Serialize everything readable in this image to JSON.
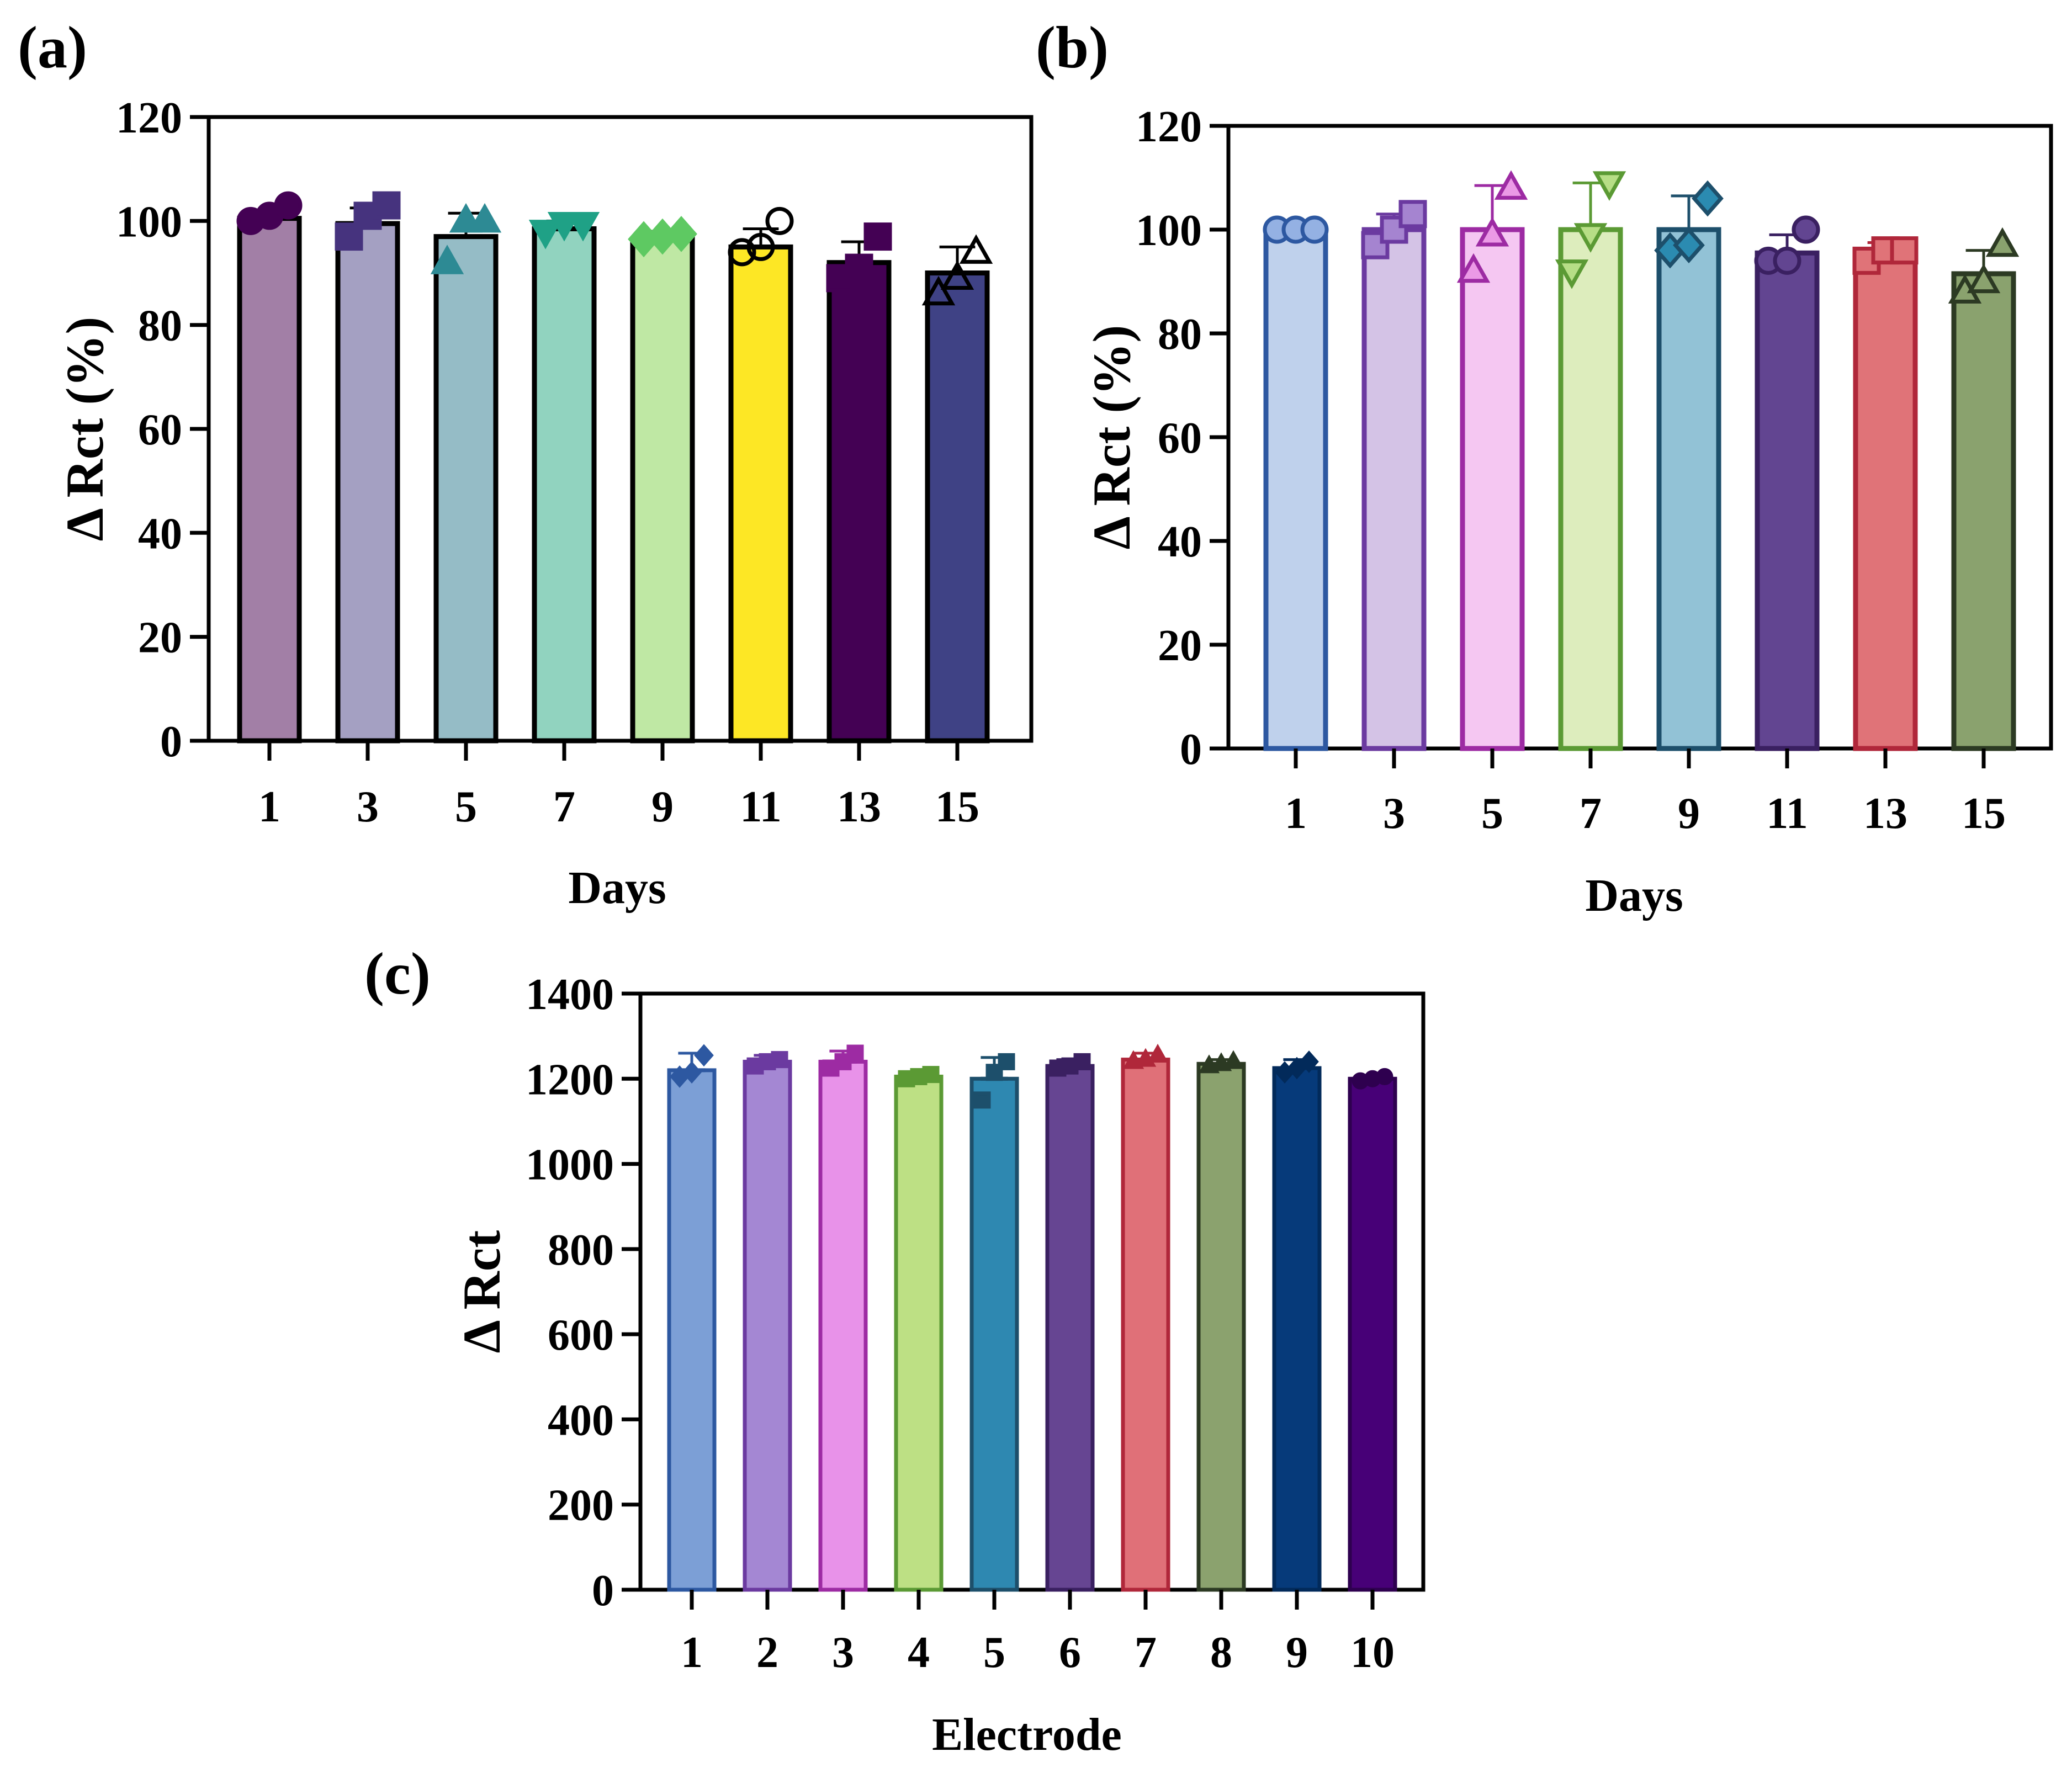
{
  "chart_data": [
    {
      "panel_label": "(a)",
      "type": "bar",
      "categories": [
        "1",
        "3",
        "5",
        "7",
        "9",
        "11",
        "13",
        "15"
      ],
      "values": [
        100.5,
        99.5,
        97,
        98.5,
        96.5,
        95,
        92,
        90
      ],
      "errors": [
        1.0,
        3.0,
        4.5,
        1.5,
        1.5,
        3.5,
        4.0,
        5.0
      ],
      "points": [
        [
          100,
          101,
          103
        ],
        [
          97,
          101,
          103
        ],
        [
          92,
          100,
          100
        ],
        [
          98,
          99.5,
          99.5
        ],
        [
          96.5,
          97,
          97.5
        ],
        [
          94,
          95,
          100
        ],
        [
          89,
          91,
          97
        ],
        [
          86,
          89,
          94
        ]
      ],
      "markers": [
        "circle",
        "square",
        "triangle",
        "triangle-down",
        "diamond",
        "circle",
        "square",
        "triangle"
      ],
      "fills": [
        "#a27fa6",
        "#a4a0c2",
        "#95bcc6",
        "#91d3bf",
        "#bfe8a4",
        "#fde725",
        "#440154",
        "#3f4285"
      ],
      "marker_colors": [
        "#440154",
        "#46337e",
        "#2d8a94",
        "#1fa186",
        "#5ec962",
        "#fde725",
        "#440154",
        "#3f4285"
      ],
      "marker_filled": [
        true,
        true,
        true,
        true,
        true,
        false,
        true,
        false
      ],
      "edge_color": "#000000",
      "xlabel": "Days",
      "ylabel": "Δ Rct (%)",
      "ylim": [
        0,
        120
      ],
      "yticks": [
        "0",
        "20",
        "40",
        "60",
        "80",
        "100",
        "120"
      ],
      "grid": false
    },
    {
      "panel_label": "(b)",
      "type": "bar",
      "categories": [
        "1",
        "3",
        "5",
        "7",
        "9",
        "11",
        "13",
        "15"
      ],
      "values": [
        100,
        100,
        100,
        100,
        100,
        95.5,
        95.5,
        91.5
      ],
      "errors": [
        0.5,
        3.0,
        8.5,
        9.0,
        6.5,
        3.5,
        2.0,
        4.5
      ],
      "points": [
        [
          100,
          100,
          100
        ],
        [
          97,
          100,
          103
        ],
        [
          92,
          99,
          108
        ],
        [
          92,
          99,
          109
        ],
        [
          96,
          97,
          106
        ],
        [
          94,
          94,
          100
        ],
        [
          94,
          96,
          96
        ],
        [
          88,
          90,
          97
        ]
      ],
      "markers": [
        "circle",
        "square",
        "triangle",
        "triangle-down",
        "diamond",
        "circle",
        "square",
        "triangle"
      ],
      "fills": [
        "#bfd1ec",
        "#d4c3e6",
        "#f5c7f2",
        "#ddedbd",
        "#92c2d6",
        "#624591",
        "#e07378",
        "#8aa26e"
      ],
      "edge_colors": [
        "#2d58a1",
        "#6b3aa0",
        "#9d2ba3",
        "#5b9a34",
        "#1d4f6b",
        "#3a2061",
        "#b0273a",
        "#2c3a23"
      ],
      "marker_colors": [
        "#94b1e3",
        "#a584d0",
        "#eb9ae6",
        "#b7de86",
        "#2b8bb1",
        "#624591",
        "#e07378",
        "#8aa26e"
      ],
      "xlabel": "Days",
      "ylabel": "Δ Rct (%)",
      "ylim": [
        0,
        120
      ],
      "yticks": [
        "0",
        "20",
        "40",
        "60",
        "80",
        "100",
        "120"
      ],
      "grid": false
    },
    {
      "panel_label": "(c)",
      "type": "bar",
      "categories": [
        "1",
        "2",
        "3",
        "4",
        "5",
        "6",
        "7",
        "8",
        "9",
        "10"
      ],
      "values": [
        1220,
        1240,
        1240,
        1205,
        1200,
        1230,
        1245,
        1235,
        1225,
        1200
      ],
      "errors": [
        40,
        15,
        25,
        10,
        50,
        15,
        15,
        10,
        20,
        8
      ],
      "points": [
        [
          1205,
          1215,
          1255
        ],
        [
          1230,
          1240,
          1245
        ],
        [
          1225,
          1240,
          1260
        ],
        [
          1200,
          1205,
          1210
        ],
        [
          1150,
          1215,
          1240
        ],
        [
          1225,
          1230,
          1240
        ],
        [
          1240,
          1245,
          1255
        ],
        [
          1230,
          1235,
          1240
        ],
        [
          1215,
          1225,
          1240
        ],
        [
          1195,
          1200,
          1205
        ]
      ],
      "markers": [
        "diamond",
        "square",
        "square",
        "square",
        "square",
        "square",
        "triangle",
        "triangle",
        "diamond",
        "circle"
      ],
      "fills": [
        "#7c9fd6",
        "#a487d3",
        "#e892e9",
        "#bde084",
        "#2e88b1",
        "#664592",
        "#e07078",
        "#8ba26e",
        "#063a7a",
        "#470077"
      ],
      "edge_colors": [
        "#2d58a1",
        "#6b3aa0",
        "#9d2ba3",
        "#5b9a34",
        "#1d4f6b",
        "#3a2061",
        "#b0273a",
        "#2c3a23",
        "#022a5a",
        "#2e004f"
      ],
      "marker_colors": [
        "#2d58a1",
        "#6b3aa0",
        "#9d2ba3",
        "#5b9a34",
        "#1d4f6b",
        "#3a2061",
        "#b0273a",
        "#2c3a23",
        "#022a5a",
        "#2e004f"
      ],
      "xlabel": "Electrode",
      "ylabel": "Δ Rct",
      "ylim": [
        0,
        1400
      ],
      "yticks": [
        "0",
        "200",
        "400",
        "600",
        "800",
        "1000",
        "1200",
        "1400"
      ],
      "grid": false
    }
  ]
}
